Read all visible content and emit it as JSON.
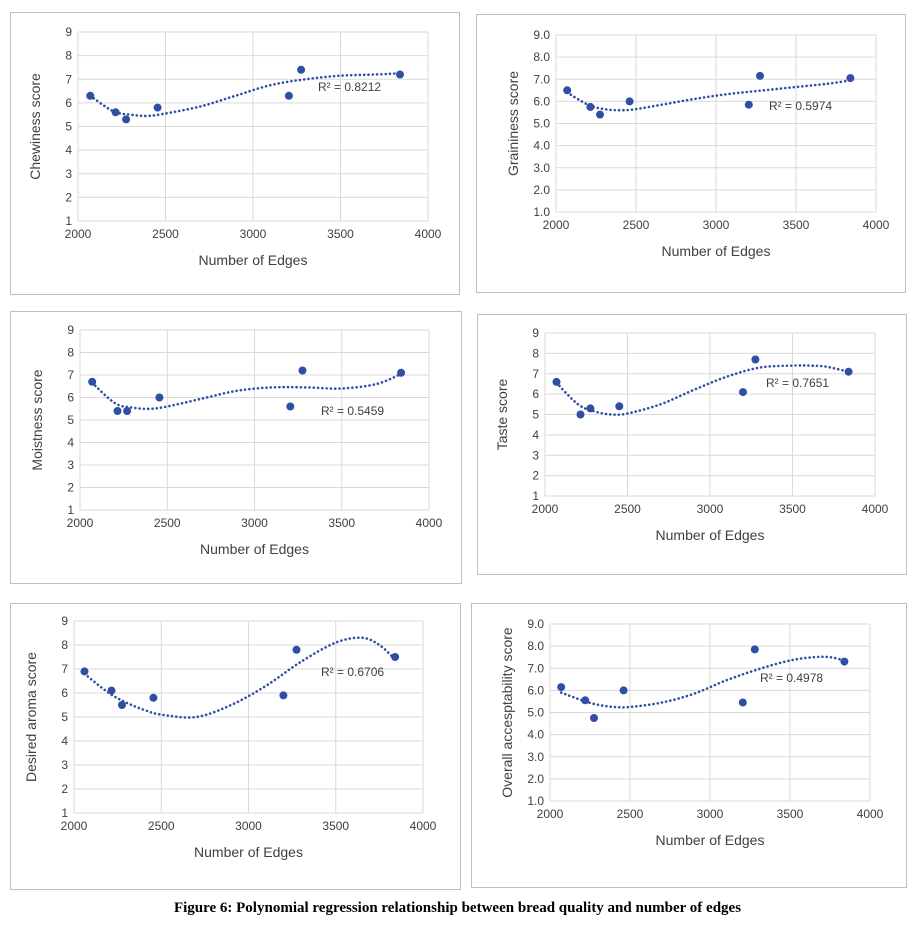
{
  "caption": "Figure 6: Polynomial regression relationship between bread quality and number of edges",
  "colors": {
    "series": "#2e4fa3",
    "grid": "#d9d9d9",
    "text": "#404040",
    "border": "#bfbfbf"
  },
  "chart_data": [
    {
      "type": "scatter",
      "title": "",
      "xlabel": "Number of Edges",
      "ylabel": "Chewiness score",
      "xlim": [
        2000,
        4000
      ],
      "ylim": [
        1,
        9
      ],
      "xticks": [
        "2000",
        "2500",
        "3000",
        "3500",
        "4000"
      ],
      "yticks": [
        "1",
        "2",
        "3",
        "4",
        "5",
        "6",
        "7",
        "8",
        "9"
      ],
      "grid": true,
      "x": [
        2070,
        2215,
        2275,
        2455,
        3205,
        3275,
        3840
      ],
      "y": [
        6.3,
        5.6,
        5.3,
        5.8,
        6.3,
        7.4,
        7.2
      ],
      "trendline": {
        "type": "polynomial",
        "x": [
          2070,
          2200,
          2300,
          2400,
          2500,
          2700,
          2900,
          3100,
          3300,
          3500,
          3700,
          3840
        ],
        "y": [
          6.3,
          5.65,
          5.5,
          5.45,
          5.55,
          5.85,
          6.3,
          6.75,
          7.0,
          7.15,
          7.2,
          7.25
        ]
      },
      "annotation": "R² = 0.8212"
    },
    {
      "type": "scatter",
      "title": "",
      "xlabel": "Number of Edges",
      "ylabel": "Graininess score",
      "xlim": [
        2000,
        4000
      ],
      "ylim": [
        1,
        9
      ],
      "xticks": [
        "2000",
        "2500",
        "3000",
        "3500",
        "4000"
      ],
      "yticks": [
        "1.0",
        "2.0",
        "3.0",
        "4.0",
        "5.0",
        "6.0",
        "7.0",
        "8.0",
        "9.0"
      ],
      "grid": true,
      "x": [
        2070,
        2215,
        2275,
        2460,
        3205,
        3275,
        3840
      ],
      "y": [
        6.5,
        5.75,
        5.4,
        6.0,
        5.85,
        7.15,
        7.05
      ],
      "trendline": {
        "type": "polynomial",
        "x": [
          2070,
          2200,
          2300,
          2400,
          2500,
          2700,
          2900,
          3100,
          3300,
          3500,
          3700,
          3840
        ],
        "y": [
          6.4,
          5.85,
          5.65,
          5.6,
          5.65,
          5.9,
          6.15,
          6.35,
          6.5,
          6.65,
          6.8,
          6.95
        ]
      },
      "annotation": "R² = 0.5974"
    },
    {
      "type": "scatter",
      "title": "",
      "xlabel": "Number of Edges",
      "ylabel": "Moistness score",
      "xlim": [
        2000,
        4000
      ],
      "ylim": [
        1,
        9
      ],
      "xticks": [
        "2000",
        "2500",
        "3000",
        "3500",
        "4000"
      ],
      "yticks": [
        "1",
        "2",
        "3",
        "4",
        "5",
        "6",
        "7",
        "8",
        "9"
      ],
      "grid": true,
      "x": [
        2070,
        2215,
        2270,
        2455,
        3205,
        3275,
        3840
      ],
      "y": [
        6.7,
        5.4,
        5.4,
        6.0,
        5.6,
        7.2,
        7.1
      ],
      "trendline": {
        "type": "polynomial",
        "x": [
          2070,
          2200,
          2300,
          2400,
          2500,
          2700,
          2900,
          3100,
          3300,
          3500,
          3700,
          3840
        ],
        "y": [
          6.65,
          5.75,
          5.55,
          5.5,
          5.6,
          5.95,
          6.3,
          6.45,
          6.45,
          6.4,
          6.6,
          7.05
        ]
      },
      "annotation": "R² = 0.5459"
    },
    {
      "type": "scatter",
      "title": "",
      "xlabel": "Number of Edges",
      "ylabel": "Taste score",
      "xlim": [
        2000,
        4000
      ],
      "ylim": [
        1,
        9
      ],
      "xticks": [
        "2000",
        "2500",
        "3000",
        "3500",
        "4000"
      ],
      "yticks": [
        "1",
        "2",
        "3",
        "4",
        "5",
        "6",
        "7",
        "8",
        "9"
      ],
      "grid": true,
      "x": [
        2070,
        2215,
        2275,
        2450,
        3200,
        3275,
        3840
      ],
      "y": [
        6.6,
        5.0,
        5.3,
        5.4,
        6.1,
        7.7,
        7.1
      ],
      "trendline": {
        "type": "polynomial",
        "x": [
          2070,
          2200,
          2300,
          2400,
          2500,
          2700,
          2900,
          3100,
          3300,
          3500,
          3600,
          3700,
          3840
        ],
        "y": [
          6.55,
          5.5,
          5.15,
          5.0,
          5.05,
          5.5,
          6.2,
          6.85,
          7.3,
          7.4,
          7.4,
          7.35,
          7.1
        ]
      },
      "annotation": "R² = 0.7651"
    },
    {
      "type": "scatter",
      "title": "",
      "xlabel": "Number of Edges",
      "ylabel": "Desired aroma score",
      "xlim": [
        2000,
        4000
      ],
      "ylim": [
        1,
        9
      ],
      "xticks": [
        "2000",
        "2500",
        "3000",
        "3500",
        "4000"
      ],
      "yticks": [
        "1",
        "2",
        "3",
        "4",
        "5",
        "6",
        "7",
        "8",
        "9"
      ],
      "grid": true,
      "x": [
        2060,
        2215,
        2275,
        2455,
        3200,
        3275,
        3840
      ],
      "y": [
        6.9,
        6.1,
        5.5,
        5.8,
        5.9,
        7.8,
        7.5
      ],
      "trendline": {
        "type": "polynomial",
        "x": [
          2060,
          2200,
          2300,
          2400,
          2500,
          2700,
          2900,
          3100,
          3300,
          3500,
          3650,
          3750,
          3840
        ],
        "y": [
          6.8,
          6.0,
          5.6,
          5.3,
          5.1,
          5.0,
          5.5,
          6.3,
          7.3,
          8.1,
          8.3,
          8.0,
          7.4
        ]
      },
      "annotation": "R² = 0.6706"
    },
    {
      "type": "scatter",
      "title": "",
      "xlabel": "Number of Edges",
      "ylabel": "Overall accesptability score",
      "xlim": [
        2000,
        4000
      ],
      "ylim": [
        1,
        9
      ],
      "xticks": [
        "2000",
        "2500",
        "3000",
        "3500",
        "4000"
      ],
      "yticks": [
        "1.0",
        "2.0",
        "3.0",
        "4.0",
        "5.0",
        "6.0",
        "7.0",
        "8.0",
        "9.0"
      ],
      "grid": true,
      "x": [
        2070,
        2220,
        2275,
        2460,
        3205,
        3280,
        3840
      ],
      "y": [
        6.15,
        5.55,
        4.75,
        6.0,
        5.45,
        7.85,
        7.3
      ],
      "trendline": {
        "type": "polynomial",
        "x": [
          2070,
          2200,
          2300,
          2400,
          2500,
          2700,
          2900,
          3100,
          3300,
          3500,
          3650,
          3750,
          3840
        ],
        "y": [
          5.9,
          5.55,
          5.35,
          5.25,
          5.25,
          5.45,
          5.85,
          6.45,
          6.95,
          7.35,
          7.5,
          7.5,
          7.35
        ]
      },
      "annotation": "R² = 0.4978"
    }
  ]
}
